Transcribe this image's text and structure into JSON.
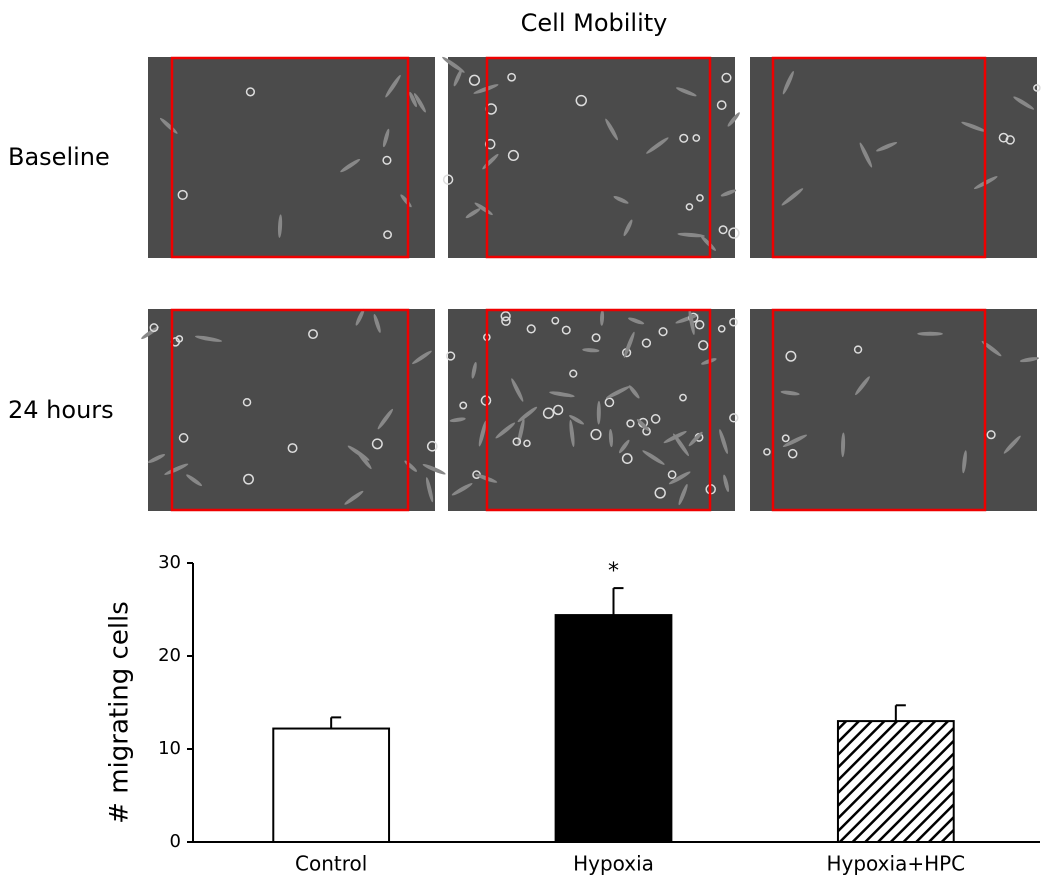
{
  "figure": {
    "title": "Cell Mobility",
    "row_labels": [
      "Baseline",
      "24 hours"
    ]
  },
  "chart_data": {
    "type": "bar",
    "ylabel": "# migrating cells",
    "categories": [
      "Control",
      "Hypoxia",
      "Hypoxia+HPC"
    ],
    "values": [
      12.2,
      24.4,
      13.0
    ],
    "errors": [
      1.2,
      2.9,
      1.7
    ],
    "colors": [
      "#ffffff",
      "#000000",
      "#ffffff"
    ],
    "hatches": [
      false,
      false,
      true
    ],
    "markers": [
      null,
      "*",
      null
    ],
    "ylim": [
      0,
      30
    ],
    "yticks": [
      0,
      10,
      20,
      30
    ],
    "grid": false
  }
}
